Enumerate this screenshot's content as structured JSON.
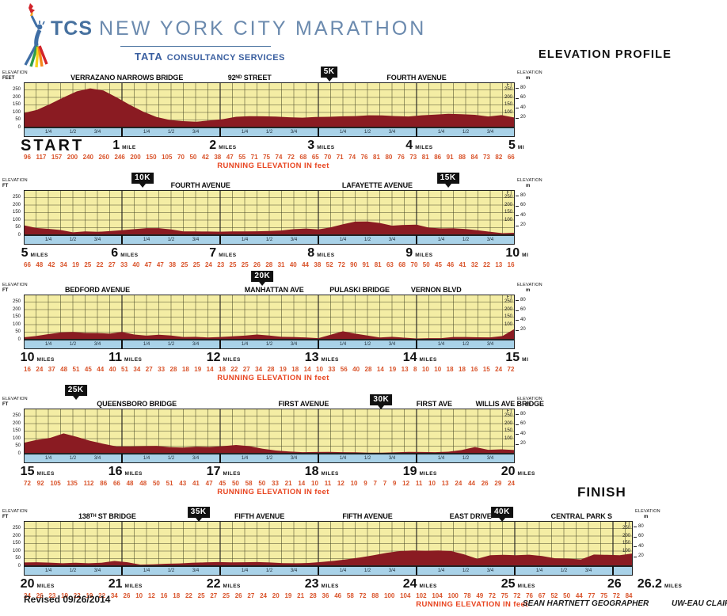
{
  "header": {
    "tcs": "TCS",
    "title": "NEW YORK CITY MARATHON",
    "tata_bold": "TATA",
    "tata_rest": "CONSULTANCY SERVICES",
    "page_title": "ELEVATION PROFILE"
  },
  "labels": {
    "start": "START",
    "finish": "FINISH",
    "running_elevation": "RUNNING ELEVATION IN feet",
    "elevation": "ELEVATION",
    "m_unit": "m",
    "ft_unit": "FT",
    "quarters": [
      "1/4",
      "1/2",
      "3/4"
    ]
  },
  "footer": {
    "revised": "Revised 09/26/2014",
    "credit_name": "SEAN HARTNETT GEOGRAPHER",
    "credit_org": "UW-EAU CLAIRE"
  },
  "colors": {
    "brand_slate": "#47719f",
    "tata_blue": "#3a5fa0",
    "plot_yellow": "#f4eda4",
    "profile_maroon": "#8a1b22",
    "mile_strip_blue": "#a9d2e8",
    "grid": "#4a4a2a",
    "elevation_numbers_orange": "#d9532a",
    "running_label_red": "#e8441f",
    "km_marker_black": "#111111"
  },
  "chart_data": {
    "type": "area",
    "title": "ELEVATION PROFILE",
    "ylabel_left": "ELEVATION FEET",
    "ylabel_right": "ELEVATION m",
    "y_range_ft": [
      0,
      300
    ],
    "feet_ticks": [
      0,
      50,
      100,
      150,
      200,
      250
    ],
    "feet_ticks_inside_right": [
      100,
      150,
      200,
      250
    ],
    "meter_ticks": [
      20,
      40,
      60,
      80
    ],
    "sample_interval_miles": 0.125,
    "grid": true,
    "strips": [
      {
        "mile_start": 0,
        "mile_end": 5,
        "left_unit": "FEET",
        "start_label": "START",
        "mile_ticks": [
          {
            "mile": 1,
            "label": "1",
            "suffix": "MILE"
          },
          {
            "mile": 2,
            "label": "2",
            "suffix": "MILES"
          },
          {
            "mile": 3,
            "label": "3",
            "suffix": "MILES"
          },
          {
            "mile": 4,
            "label": "4",
            "suffix": "MILES"
          },
          {
            "mile": 5,
            "label": "5",
            "suffix": "MI"
          }
        ],
        "street_labels": [
          {
            "label": "VERRAZANO NARROWS BRIDGE",
            "mile": 1.05
          },
          {
            "label": "92ᴺᴰ STREET",
            "mile": 2.3
          },
          {
            "label": "FOURTH AVENUE",
            "mile": 4.0
          }
        ],
        "km_markers": [
          {
            "label": "5K",
            "mile": 3.11,
            "raised": true
          }
        ],
        "elevations_ft": [
          96,
          117,
          157,
          200,
          240,
          260,
          246,
          200,
          150,
          105,
          70,
          50,
          42,
          38,
          47,
          55,
          71,
          75,
          74,
          72,
          68,
          65,
          70,
          71,
          74,
          76,
          81,
          80,
          76,
          73,
          81,
          86,
          91,
          88,
          84,
          73,
          82,
          66
        ],
        "running_label": true
      },
      {
        "mile_start": 5,
        "mile_end": 10,
        "left_unit": "FT",
        "mile_ticks": [
          {
            "mile": 5,
            "label": "5",
            "suffix": "MILES"
          },
          {
            "mile": 6,
            "label": "6",
            "suffix": "MILES"
          },
          {
            "mile": 7,
            "label": "7",
            "suffix": "MILES"
          },
          {
            "mile": 8,
            "label": "8",
            "suffix": "MILES"
          },
          {
            "mile": 9,
            "label": "9",
            "suffix": "MILES"
          },
          {
            "mile": 10,
            "label": "10",
            "suffix": "MI"
          }
        ],
        "street_labels": [
          {
            "label": "FOURTH AVENUE",
            "mile": 6.8
          },
          {
            "label": "LAFAYETTE AVENUE",
            "mile": 8.6
          }
        ],
        "km_markers": [
          {
            "label": "10K",
            "mile": 6.21,
            "raised": true
          },
          {
            "label": "15K",
            "mile": 9.32,
            "raised": true
          }
        ],
        "elevations_ft": [
          66,
          48,
          42,
          34,
          19,
          25,
          22,
          27,
          33,
          40,
          47,
          47,
          38,
          25,
          25,
          24,
          23,
          25,
          25,
          26,
          28,
          31,
          40,
          44,
          38,
          52,
          72,
          90,
          91,
          81,
          63,
          68,
          70,
          50,
          45,
          46,
          41,
          32,
          22,
          13,
          16
        ],
        "running_label": false
      },
      {
        "mile_start": 10,
        "mile_end": 15,
        "left_unit": "FT",
        "mile_ticks": [
          {
            "mile": 10,
            "label": "10",
            "suffix": "MILES"
          },
          {
            "mile": 11,
            "label": "11",
            "suffix": "MILES"
          },
          {
            "mile": 12,
            "label": "12",
            "suffix": "MILES"
          },
          {
            "mile": 13,
            "label": "13",
            "suffix": "MILES"
          },
          {
            "mile": 14,
            "label": "14",
            "suffix": "MILES"
          },
          {
            "mile": 15,
            "label": "15",
            "suffix": "MI"
          }
        ],
        "street_labels": [
          {
            "label": "BEDFORD AVENUE",
            "mile": 10.75
          },
          {
            "label": "MANHATTAN AVE",
            "mile": 12.55
          },
          {
            "label": "PULASKI BRIDGE",
            "mile": 13.42
          },
          {
            "label": "VERNON BLVD",
            "mile": 14.2
          }
        ],
        "km_markers": [
          {
            "label": "20K",
            "mile": 12.43,
            "raised": true
          }
        ],
        "elevations_ft": [
          16,
          24,
          37,
          48,
          51,
          45,
          44,
          40,
          51,
          34,
          27,
          33,
          28,
          18,
          19,
          14,
          18,
          22,
          27,
          34,
          28,
          19,
          18,
          14,
          10,
          33,
          56,
          40,
          28,
          14,
          19,
          13,
          8,
          10,
          10,
          18,
          18,
          16,
          15,
          24,
          72
        ],
        "running_label": true
      },
      {
        "mile_start": 15,
        "mile_end": 20,
        "left_unit": "FT",
        "mile_ticks": [
          {
            "mile": 15,
            "label": "15",
            "suffix": "MILES"
          },
          {
            "mile": 16,
            "label": "16",
            "suffix": "MILES"
          },
          {
            "mile": 17,
            "label": "17",
            "suffix": "MILES"
          },
          {
            "mile": 18,
            "label": "18",
            "suffix": "MILES"
          },
          {
            "mile": 19,
            "label": "19",
            "suffix": "MILES"
          },
          {
            "mile": 20,
            "label": "20",
            "suffix": "MILES"
          }
        ],
        "street_labels": [
          {
            "label": "QUEENSBORO BRIDGE",
            "mile": 16.15
          },
          {
            "label": "FIRST AVENUE",
            "mile": 17.85
          },
          {
            "label": "FIRST AVE",
            "mile": 19.18
          },
          {
            "label": "WILLIS AVE BRIDGE",
            "mile": 19.95
          }
        ],
        "km_markers": [
          {
            "label": "25K",
            "mile": 15.53,
            "raised": true
          },
          {
            "label": "30K",
            "mile": 18.64,
            "raised": false
          }
        ],
        "elevations_ft": [
          72,
          92,
          105,
          135,
          112,
          86,
          66,
          48,
          48,
          50,
          51,
          43,
          41,
          47,
          45,
          50,
          58,
          50,
          33,
          21,
          14,
          10,
          11,
          12,
          10,
          9,
          7,
          7,
          9,
          12,
          11,
          10,
          13,
          24,
          44,
          26,
          29,
          24
        ],
        "running_label": true
      },
      {
        "mile_start": 20,
        "mile_end": 26.2,
        "left_unit": "FT",
        "finish_label": "FINISH",
        "mile_ticks": [
          {
            "mile": 20,
            "label": "20",
            "suffix": "MILES"
          },
          {
            "mile": 21,
            "label": "21",
            "suffix": "MILES"
          },
          {
            "mile": 22,
            "label": "22",
            "suffix": "MILES"
          },
          {
            "mile": 23,
            "label": "23",
            "suffix": "MILES"
          },
          {
            "mile": 24,
            "label": "24",
            "suffix": "MILES"
          },
          {
            "mile": 25,
            "label": "25",
            "suffix": "MILES"
          },
          {
            "mile": 26,
            "label": "26",
            "suffix": ""
          },
          {
            "mile": 26.2,
            "label": "26.2",
            "suffix": "MILES",
            "outside": true
          }
        ],
        "street_labels": [
          {
            "label": "138ᵀᴴ ST BRIDGE",
            "mile": 20.85
          },
          {
            "label": "FIFTH AVENUE",
            "mile": 22.4
          },
          {
            "label": "FIFTH AVENUE",
            "mile": 23.5
          },
          {
            "label": "EAST DRIVE",
            "mile": 24.55
          },
          {
            "label": "CENTRAL PARK S",
            "mile": 25.68
          }
        ],
        "km_markers": [
          {
            "label": "35K",
            "mile": 21.78,
            "raised": false
          },
          {
            "label": "40K",
            "mile": 24.87,
            "raised": false
          }
        ],
        "elevations_ft": [
          24,
          26,
          23,
          19,
          22,
          19,
          22,
          34,
          26,
          10,
          12,
          16,
          18,
          22,
          25,
          27,
          25,
          26,
          27,
          24,
          20,
          19,
          21,
          28,
          36,
          46,
          58,
          72,
          88,
          100,
          104,
          102,
          104,
          100,
          78,
          49,
          72,
          75,
          72,
          76,
          67,
          52,
          50,
          44,
          77,
          75,
          72,
          84
        ],
        "running_label": true
      }
    ]
  }
}
